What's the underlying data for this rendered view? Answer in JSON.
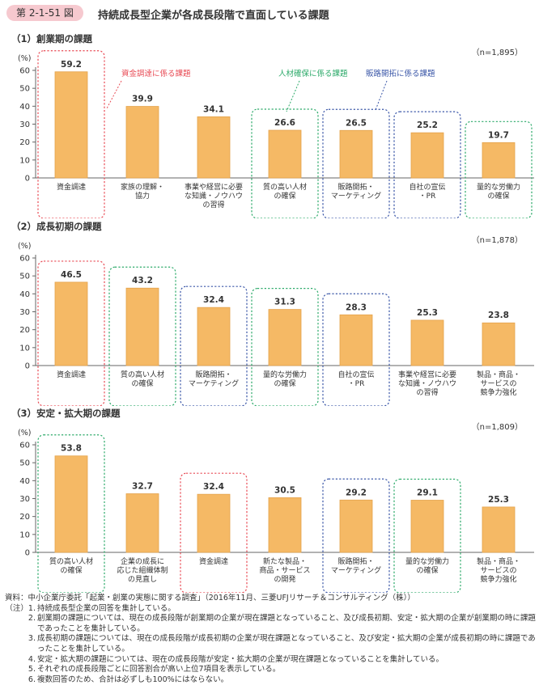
{
  "figure": {
    "number": "第 2-1-51 図",
    "title": "持続成長型企業が各成長段階で直面している課題"
  },
  "colors": {
    "bar": "#f5b965",
    "bar_stroke": "#e4a24b",
    "funding": "#e84b55",
    "hr": "#2daa6a",
    "sales": "#3b57a8",
    "axis": "#666666"
  },
  "callouts": {
    "funding": "資金調達に係る課題",
    "hr": "人材確保に係る課題",
    "sales": "販路開拓に係る課題"
  },
  "chart_data": [
    {
      "type": "bar",
      "title": "（1）創業期の課題",
      "n_label": "（n=1,895）",
      "ylabel": "(%)",
      "ylim": [
        0,
        60
      ],
      "yticks": [
        0,
        10,
        20,
        30,
        40,
        50,
        60
      ],
      "categories": [
        "資金調達",
        "家族の理解・\n協力",
        "事業や経営に必要\nな知識・ノウハウ\nの習得",
        "質の高い人材\nの確保",
        "販路開拓・\nマーケティング",
        "自社の宣伝\n・PR",
        "量的な労働力\nの確保"
      ],
      "values": [
        59.2,
        39.9,
        34.1,
        26.6,
        26.5,
        25.2,
        19.7
      ],
      "highlight": [
        "funding",
        "",
        "",
        "hr",
        "sales",
        "sales",
        "hr"
      ]
    },
    {
      "type": "bar",
      "title": "（2）成長初期の課題",
      "n_label": "（n=1,878）",
      "ylabel": "(%)",
      "ylim": [
        0,
        60
      ],
      "yticks": [
        0,
        10,
        20,
        30,
        40,
        50,
        60
      ],
      "categories": [
        "資金調達",
        "質の高い人材\nの確保",
        "販路開拓・\nマーケティング",
        "量的な労働力\nの確保",
        "自社の宣伝\n・PR",
        "事業や経営に必要\nな知識・ノウハウ\nの習得",
        "製品・商品・\nサービスの\n競争力強化"
      ],
      "values": [
        46.5,
        43.2,
        32.4,
        31.3,
        28.3,
        25.3,
        23.8
      ],
      "highlight": [
        "funding",
        "hr",
        "sales",
        "hr",
        "sales",
        "",
        ""
      ]
    },
    {
      "type": "bar",
      "title": "（3）安定・拡大期の課題",
      "n_label": "（n=1,809）",
      "ylabel": "(%)",
      "ylim": [
        0,
        60
      ],
      "yticks": [
        0,
        10,
        20,
        30,
        40,
        50,
        60
      ],
      "categories": [
        "質の高い人材\nの確保",
        "企業の成長に\n応じた組織体制\nの見直し",
        "資金調達",
        "新たな製品・\n商品・サービス\nの開発",
        "販路開拓・\nマーケティング",
        "量的な労働力\nの確保",
        "製品・商品・\nサービスの\n競争力強化"
      ],
      "values": [
        53.8,
        32.7,
        32.4,
        30.5,
        29.2,
        29.1,
        25.3
      ],
      "highlight": [
        "hr",
        "",
        "funding",
        "",
        "sales",
        "hr",
        ""
      ]
    }
  ],
  "notes": {
    "source": "資料：中小企業庁委託「起業・創業の実態に関する調査」（2016年11月、三菱UFJリサーチ＆コンサルティング（株））",
    "items": [
      {
        "label": "（注）1.",
        "text": "持続成長型企業の回答を集計している。"
      },
      {
        "label": "2.",
        "text": "創業期の課題については、現在の成長段階が創業期の企業が現在課題となっていること、及び成長初期、安定・拡大期の企業が創業期の時に課題であったことを集計している。"
      },
      {
        "label": "3.",
        "text": "成長初期の課題については、現在の成長段階が成長初期の企業が現在課題となっていること、及び安定・拡大期の企業が成長初期の時に課題であったことを集計している。"
      },
      {
        "label": "4.",
        "text": "安定・拡大期の課題については、現在の成長段階が安定・拡大期の企業が現在課題となっていることを集計している。"
      },
      {
        "label": "5.",
        "text": "それぞれの成長段階ごとに回答割合が高い上位7項目を表示している。"
      },
      {
        "label": "6.",
        "text": "複数回答のため、合計は必ずしも100%にはならない。"
      }
    ]
  }
}
